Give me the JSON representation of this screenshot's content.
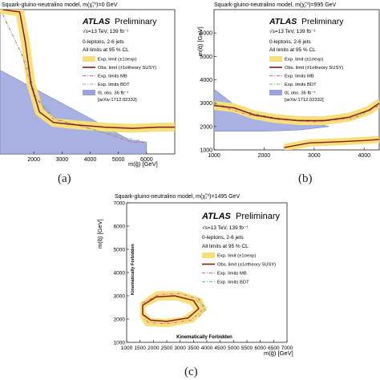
{
  "chart_data": [
    {
      "type": "area",
      "caption": "(a)",
      "title": "Squark-gluino-neutralino model, m(χ̃₁⁰)=0 GeV",
      "xlabel": "m(g̃) [GeV]",
      "ylabel": "",
      "x_ticks": [
        "2000",
        "3000",
        "4000",
        "5000",
        "6000"
      ],
      "y_ticks": [],
      "xlim": [
        800,
        7000
      ],
      "ylim": [
        800,
        7000
      ],
      "atlas_label": "ATLAS",
      "atlas_sub": "Preliminary",
      "energy_lumi": "√s=13 TeV, 139 fb⁻¹",
      "selection": "0-leptons, 2-6 jets",
      "cl_text": "All limits at 95 % CL",
      "legend": [
        {
          "label": "Exp. limit (±1σexp)",
          "kind": "band",
          "color": "#f5e07a"
        },
        {
          "label": "Obs. limit (±1σtheory SUSY)",
          "kind": "line",
          "color": "#8a1a1a"
        },
        {
          "label": "Exp. limits MB",
          "kind": "dashdot",
          "color": "#e05a8a"
        },
        {
          "label": "Exp. limits BDT",
          "kind": "dashdot",
          "color": "#6cc46c"
        },
        {
          "label": "0L obs. 36 fb⁻¹",
          "kind": "fill",
          "color": "#9aa3dd"
        },
        {
          "label": "[arXiv:1712.02332]",
          "kind": "none",
          "color": ""
        }
      ],
      "obs_limit": [
        [
          900,
          7000
        ],
        [
          1500,
          6900
        ],
        [
          1700,
          5600
        ],
        [
          1900,
          3800
        ],
        [
          2200,
          2600
        ],
        [
          2700,
          2150
        ],
        [
          3500,
          2050
        ],
        [
          4500,
          1950
        ],
        [
          5500,
          1900
        ],
        [
          6400,
          1950
        ],
        [
          7000,
          1950
        ]
      ],
      "prev_limit": [
        [
          800,
          7000
        ],
        [
          800,
          4400
        ],
        [
          4200,
          2200
        ],
        [
          5400,
          1400
        ],
        [
          6000,
          1300
        ],
        [
          6000,
          800
        ],
        [
          800,
          800
        ]
      ],
      "mb_limit": [
        [
          900,
          6800
        ],
        [
          1600,
          5000
        ],
        [
          2000,
          3300
        ],
        [
          2700,
          2300
        ],
        [
          4000,
          1900
        ],
        [
          5500,
          1300
        ],
        [
          6000,
          1300
        ]
      ],
      "bdt_limit": [
        [
          1000,
          6500
        ],
        [
          1700,
          4800
        ],
        [
          2100,
          3200
        ],
        [
          2800,
          2300
        ],
        [
          4200,
          1800
        ],
        [
          6000,
          1300
        ]
      ]
    },
    {
      "type": "area",
      "caption": "(b)",
      "title": "Squark-gluino-neutralino model, m(χ̃₁⁰)=995 GeV",
      "xlabel": "",
      "ylabel": "m(q̃) [GeV]",
      "x_ticks": [
        "1000",
        "2000",
        "3000",
        "4000"
      ],
      "y_ticks": [
        "1000",
        "2000",
        "3000",
        "4000",
        "5000",
        "6000"
      ],
      "xlim": [
        1000,
        4300
      ],
      "ylim": [
        1000,
        7000
      ],
      "atlas_label": "ATLAS",
      "atlas_sub": "Preliminary",
      "energy_lumi": "√s=13 TeV, 139 fb⁻¹",
      "selection": "0-leptons, 2-6 jets",
      "cl_text": "All limits at 95 % CL",
      "legend": [
        {
          "label": "Exp. limit (±1σexp)",
          "kind": "band",
          "color": "#f5e07a"
        },
        {
          "label": "Obs. limit (±1σtheory SUSY)",
          "kind": "line",
          "color": "#8a1a1a"
        },
        {
          "label": "Exp. limits MB",
          "kind": "dashdot",
          "color": "#e05a8a"
        },
        {
          "label": "Exp. limits BDT",
          "kind": "dashdot",
          "color": "#6cc46c"
        },
        {
          "label": "0L obs. 36 fb⁻¹",
          "kind": "fill",
          "color": "#9aa3dd"
        },
        {
          "label": "[arXiv:1712.02332]",
          "kind": "none",
          "color": ""
        }
      ],
      "obs_limit": [
        [
          1000,
          2900
        ],
        [
          1400,
          2800
        ],
        [
          1800,
          2500
        ],
        [
          2200,
          2350
        ],
        [
          2700,
          2250
        ],
        [
          3200,
          2250
        ],
        [
          3700,
          2400
        ],
        [
          4100,
          2700
        ],
        [
          4300,
          3000
        ]
      ],
      "obs_limit_lower": [
        [
          2400,
          1100
        ],
        [
          2900,
          1300
        ],
        [
          3500,
          1350
        ],
        [
          4000,
          1400
        ],
        [
          4300,
          1450
        ]
      ],
      "prev_limit": [
        [
          1000,
          3600
        ],
        [
          1600,
          2600
        ],
        [
          2000,
          2300
        ],
        [
          2600,
          2150
        ],
        [
          3100,
          2100
        ],
        [
          3300,
          2000
        ],
        [
          2700,
          1850
        ],
        [
          2000,
          1800
        ],
        [
          1000,
          1800
        ]
      ],
      "mb_limit": [
        [
          1000,
          2950
        ],
        [
          1700,
          2500
        ],
        [
          2300,
          2300
        ],
        [
          3000,
          2200
        ],
        [
          3800,
          2350
        ],
        [
          4300,
          2900
        ]
      ],
      "bdt_limit": [
        [
          1000,
          3000
        ],
        [
          1700,
          2600
        ],
        [
          2400,
          2300
        ],
        [
          3100,
          2250
        ],
        [
          3900,
          2450
        ],
        [
          4300,
          2950
        ]
      ]
    },
    {
      "type": "area",
      "caption": "(c)",
      "title": "Squark-gluino-neutralino model, m(χ̃₁⁰)=1495 GeV",
      "xlabel": "m(g̃) [GeV]",
      "ylabel": "m(q̃) [GeV]",
      "x_ticks": [
        "1000",
        "1500",
        "2000",
        "2500",
        "3000",
        "3500",
        "4000",
        "4500",
        "5000",
        "5500",
        "6000",
        "6500",
        "7000"
      ],
      "y_ticks": [
        "1000",
        "2000",
        "3000",
        "4000",
        "5000",
        "6000",
        "7000"
      ],
      "xlim": [
        1000,
        7000
      ],
      "ylim": [
        1000,
        7000
      ],
      "atlas_label": "ATLAS",
      "atlas_sub": "Preliminary",
      "energy_lumi": "√s=13 TeV, 139 fb⁻¹",
      "selection": "0-leptons, 2-6 jets",
      "cl_text": "All limits at 95 % CL",
      "forbidden_label": "Kinematically Forbidden",
      "legend": [
        {
          "label": "Exp. limit (±1σexp)",
          "kind": "band",
          "color": "#f5e07a"
        },
        {
          "label": "Obs. limit (±1σtheory SUSY)",
          "kind": "line",
          "color": "#8a1a1a"
        },
        {
          "label": "Exp. limits MB",
          "kind": "dashdot",
          "color": "#e05a8a"
        },
        {
          "label": "Exp. limits BDT",
          "kind": "dashdot",
          "color": "#6cc46c"
        }
      ],
      "obs_limit": [
        [
          1600,
          2600
        ],
        [
          2100,
          2950
        ],
        [
          2800,
          3000
        ],
        [
          3500,
          2800
        ],
        [
          3700,
          2450
        ],
        [
          3300,
          2050
        ],
        [
          2500,
          1900
        ],
        [
          1900,
          1950
        ],
        [
          1600,
          2200
        ],
        [
          1600,
          2600
        ]
      ],
      "exp_band_outer": [
        [
          1500,
          2700
        ],
        [
          2100,
          3200
        ],
        [
          3000,
          3200
        ],
        [
          3800,
          2900
        ],
        [
          4000,
          2400
        ],
        [
          3500,
          1850
        ],
        [
          2500,
          1650
        ],
        [
          1700,
          1700
        ],
        [
          1500,
          2100
        ]
      ],
      "exp_band_inner": [
        [
          1700,
          2500
        ],
        [
          2200,
          2800
        ],
        [
          2900,
          2800
        ],
        [
          3400,
          2600
        ],
        [
          3500,
          2400
        ],
        [
          3100,
          2100
        ],
        [
          2400,
          2000
        ],
        [
          1900,
          2050
        ],
        [
          1700,
          2300
        ]
      ],
      "mb_limit": [
        [
          1600,
          2700
        ],
        [
          2200,
          3050
        ],
        [
          3000,
          3100
        ],
        [
          3700,
          2850
        ],
        [
          3900,
          2450
        ],
        [
          3400,
          1950
        ],
        [
          2500,
          1800
        ],
        [
          1800,
          1850
        ],
        [
          1600,
          2200
        ],
        [
          1600,
          2700
        ]
      ],
      "bdt_limit": [
        [
          3600,
          2800
        ],
        [
          4000,
          2500
        ],
        [
          3700,
          2100
        ]
      ]
    }
  ]
}
